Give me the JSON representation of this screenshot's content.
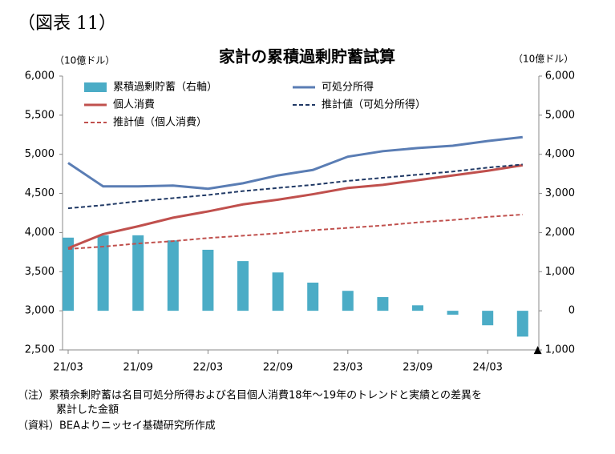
{
  "figure_label": "（図表 11）",
  "chart_data": {
    "type": "bar_line",
    "title": "家計の累積過剰貯蓄試算",
    "y_unit": "（10億ドル）",
    "y2_unit": "（10億ドル）",
    "categories": [
      "21/03",
      null,
      "21/09",
      null,
      "22/03",
      null,
      "22/09",
      null,
      "23/03",
      null,
      "23/09",
      null,
      "24/03",
      null
    ],
    "ylim": [
      2500,
      6000
    ],
    "yticks": [
      {
        "value": 2500,
        "label": "2,500"
      },
      {
        "value": 3000,
        "label": "3,000"
      },
      {
        "value": 3500,
        "label": "3,500"
      },
      {
        "value": 4000,
        "label": "4,000"
      },
      {
        "value": 4500,
        "label": "4,500"
      },
      {
        "value": 5000,
        "label": "5,000"
      },
      {
        "value": 5500,
        "label": "5,500"
      },
      {
        "value": 6000,
        "label": "6,000"
      }
    ],
    "y2lim": [
      -1000,
      6000
    ],
    "y2ticks": [
      {
        "value": -1000,
        "label": "▲ 1,000"
      },
      0,
      {
        "value": 1000,
        "label": "1,000"
      },
      {
        "value": 2000,
        "label": "2,000"
      },
      {
        "value": 3000,
        "label": "3,000"
      },
      {
        "value": 4000,
        "label": "4,000"
      },
      {
        "value": 5000,
        "label": "5,000"
      },
      {
        "value": 6000,
        "label": "6,000"
      }
    ],
    "series": [
      {
        "name": "累積過剰貯蓄（右軸）",
        "kind": "bar",
        "axis": "y2",
        "color": "#4bacc6",
        "values": [
          1870,
          1930,
          1930,
          1800,
          1560,
          1270,
          980,
          720,
          510,
          350,
          140,
          -100,
          -370,
          -660
        ]
      },
      {
        "name": "可処分所得",
        "kind": "line",
        "color": "#5a7db4",
        "values": [
          4890,
          4590,
          4590,
          4600,
          4560,
          4630,
          4730,
          4800,
          4970,
          5040,
          5080,
          5110,
          5170,
          5220
        ]
      },
      {
        "name": "個人消費",
        "kind": "line",
        "color": "#c0504d",
        "values": [
          3800,
          3980,
          4080,
          4190,
          4270,
          4360,
          4420,
          4490,
          4570,
          4610,
          4670,
          4730,
          4790,
          4860
        ]
      },
      {
        "name": "推計値（可処分所得）",
        "kind": "dashed",
        "color": "#1f3864",
        "values": [
          4310,
          4350,
          4400,
          4440,
          4480,
          4530,
          4570,
          4610,
          4660,
          4700,
          4740,
          4780,
          4830,
          4870
        ]
      },
      {
        "name": "推計値（個人消費）",
        "kind": "dashed",
        "color": "#c0504d",
        "values": [
          3790,
          3820,
          3860,
          3890,
          3930,
          3960,
          3990,
          4030,
          4060,
          4090,
          4130,
          4160,
          4200,
          4230
        ]
      }
    ]
  },
  "notes": [
    "（注）累積余剰貯蓄は名目可処分所得および名目個人消費18年〜19年のトレンドと実績との差異を",
    "累計した金額",
    "（資料）BEAよりニッセイ基礎研究所作成"
  ]
}
